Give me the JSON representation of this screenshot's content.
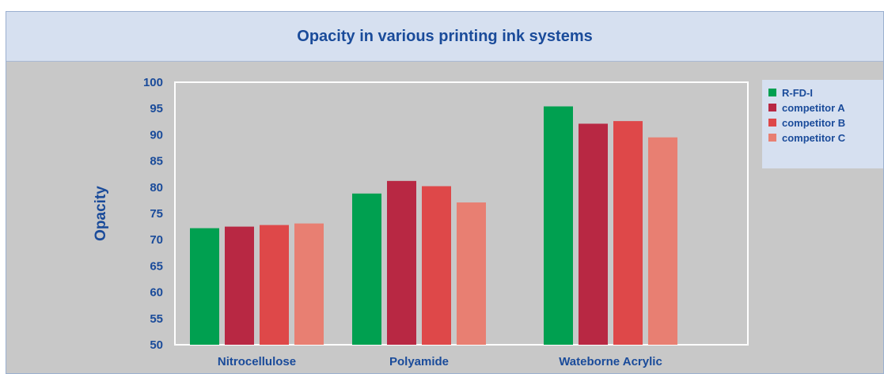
{
  "chart_data": {
    "type": "bar",
    "title": "Opacity in various printing ink systems",
    "xlabel": "",
    "ylabel": "Opacity",
    "ylim": [
      50,
      100
    ],
    "yticks": [
      "100",
      "95",
      "90",
      "85",
      "80",
      "75",
      "70",
      "65",
      "60",
      "55",
      "50"
    ],
    "categories": [
      "Nitrocellulose",
      "Polyamide",
      "Wateborne Acrylic"
    ],
    "series": [
      {
        "name": "R-FD-I",
        "color": "#00a050",
        "values": [
          72.2,
          78.8,
          95.4
        ]
      },
      {
        "name": "competitor A",
        "color": "#b82843",
        "values": [
          72.5,
          81.2,
          92.1
        ]
      },
      {
        "name": "competitor B",
        "color": "#de4849",
        "values": [
          72.8,
          80.2,
          92.6
        ]
      },
      {
        "name": "competitor C",
        "color": "#e87f72",
        "values": [
          73.1,
          77.1,
          89.5
        ]
      }
    ],
    "grid": false,
    "legend": "right"
  }
}
